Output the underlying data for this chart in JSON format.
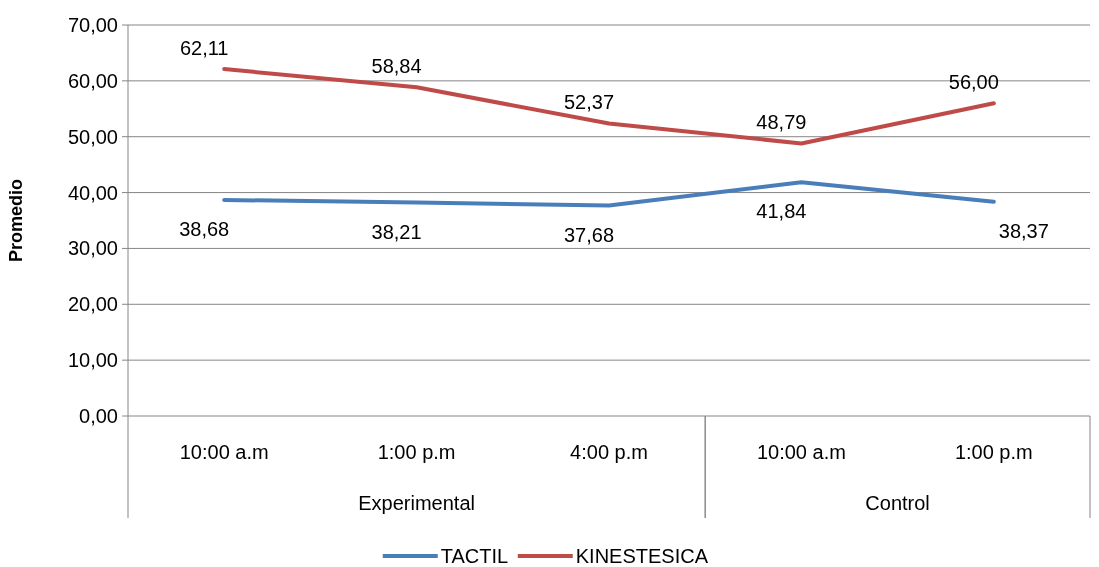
{
  "chart_data": {
    "type": "line",
    "ylabel": "Promedio",
    "categories": [
      "10:00 a.m",
      "1:00 p.m",
      "4:00 p.m",
      "10:00 a.m",
      "1:00 p.m"
    ],
    "series": [
      {
        "name": "TACTIL",
        "color": "#4a7ebb",
        "values": [
          38.68,
          38.21,
          37.68,
          41.84,
          38.37
        ],
        "value_labels": [
          "38,68",
          "38,21",
          "37,68",
          "41,84",
          "38,37"
        ]
      },
      {
        "name": "KINESTESICA",
        "color": "#be4b48",
        "values": [
          62.11,
          58.84,
          52.37,
          48.79,
          56.0
        ],
        "value_labels": [
          "62,11",
          "58,84",
          "52,37",
          "48,79",
          "56,00"
        ]
      }
    ],
    "ylim": [
      0,
      70
    ],
    "yticks": [
      {
        "value": 0,
        "label": "0,00"
      },
      {
        "value": 10,
        "label": "10,00"
      },
      {
        "value": 20,
        "label": "20,00"
      },
      {
        "value": 30,
        "label": "30,00"
      },
      {
        "value": 40,
        "label": "40,00"
      },
      {
        "value": 50,
        "label": "50,00"
      },
      {
        "value": 60,
        "label": "60,00"
      },
      {
        "value": 70,
        "label": "70,00"
      }
    ],
    "annotations": [
      "Experimental",
      "Control"
    ],
    "grid": "y",
    "legend": "bottom",
    "marker": "none",
    "line_style": "solid"
  }
}
